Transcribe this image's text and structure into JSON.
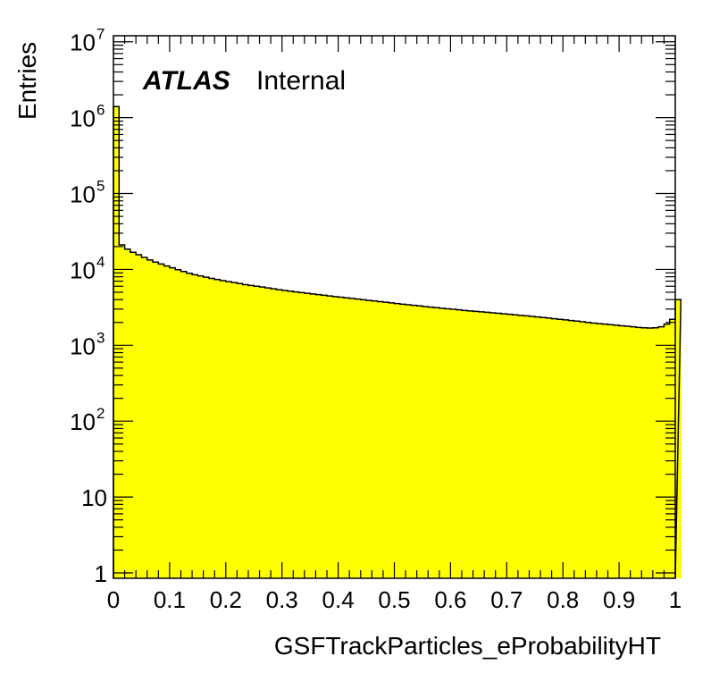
{
  "chart_data": {
    "type": "bar",
    "title": "",
    "xlabel": "GSFTrackParticles_eProbabilityHT",
    "ylabel": "Entries",
    "x_range": [
      0,
      1
    ],
    "y_range": [
      0.85,
      12000000
    ],
    "y_scale": "log",
    "bin_width": 0.01,
    "x_ticks": [
      "0",
      "0.1",
      "0.2",
      "0.3",
      "0.4",
      "0.5",
      "0.6",
      "0.7",
      "0.8",
      "0.9",
      "1"
    ],
    "y_ticks": [
      {
        "value": 1,
        "base": "1",
        "exp": ""
      },
      {
        "value": 10,
        "base": "10",
        "exp": ""
      },
      {
        "value": 100,
        "base": "10",
        "exp": "2"
      },
      {
        "value": 1000,
        "base": "10",
        "exp": "3"
      },
      {
        "value": 10000,
        "base": "10",
        "exp": "4"
      },
      {
        "value": 100000,
        "base": "10",
        "exp": "5"
      },
      {
        "value": 1000000,
        "base": "10",
        "exp": "6"
      },
      {
        "value": 10000000,
        "base": "10",
        "exp": "7"
      }
    ],
    "fill_color": "#ffff00",
    "line_color": "#000000",
    "grid": false,
    "values": [
      1400000,
      21000,
      18500,
      16800,
      15600,
      14400,
      13300,
      12500,
      11800,
      11100,
      10500,
      9900,
      9400,
      8900,
      8500,
      8200,
      7900,
      7600,
      7350,
      7100,
      6900,
      6700,
      6500,
      6300,
      6150,
      6000,
      5850,
      5700,
      5550,
      5400,
      5280,
      5160,
      5050,
      4950,
      4850,
      4750,
      4650,
      4560,
      4470,
      4380,
      4300,
      4220,
      4140,
      4060,
      3980,
      3900,
      3830,
      3760,
      3690,
      3620,
      3550,
      3480,
      3420,
      3360,
      3300,
      3240,
      3180,
      3130,
      3080,
      3030,
      2980,
      2930,
      2880,
      2840,
      2800,
      2760,
      2720,
      2680,
      2640,
      2600,
      2560,
      2520,
      2480,
      2440,
      2400,
      2360,
      2320,
      2280,
      2240,
      2200,
      2160,
      2120,
      2080,
      2040,
      2000,
      1960,
      1930,
      1900,
      1870,
      1840,
      1810,
      1780,
      1750,
      1720,
      1700,
      1690,
      1700,
      1750,
      1900,
      2200,
      4000
    ]
  },
  "annotation": {
    "atlas": "ATLAS",
    "label": "Internal"
  }
}
